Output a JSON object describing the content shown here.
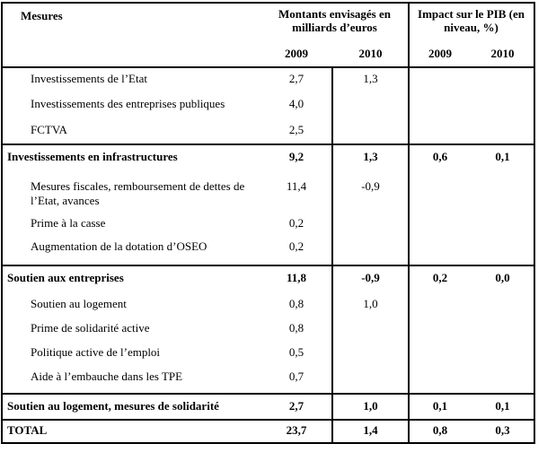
{
  "colors": {
    "border": "#000000",
    "background": "#ffffff",
    "text": "#000000"
  },
  "table": {
    "header": {
      "col_measures": "Mesures",
      "col_amounts": "Montants envisagés en milliards d’euros",
      "col_impact": "Impact sur le PIB (en niveau, %)",
      "year_cols": [
        "2009",
        "2010",
        "2009",
        "2010"
      ]
    },
    "rows": [
      {
        "type": "detail",
        "label": "Investissements de l’Etat",
        "amount_2009": "2,7",
        "amount_2010": "1,3",
        "impact_2009": "",
        "impact_2010": ""
      },
      {
        "type": "detail",
        "label": "Investissements des entreprises publiques",
        "amount_2009": "4,0",
        "amount_2010": "",
        "impact_2009": "",
        "impact_2010": ""
      },
      {
        "type": "detail",
        "label": "FCTVA",
        "amount_2009": "2,5",
        "amount_2010": "",
        "impact_2009": "",
        "impact_2010": ""
      },
      {
        "type": "section",
        "label": "Investissements en infrastructures",
        "amount_2009": "9,2",
        "amount_2010": "1,3",
        "impact_2009": "0,6",
        "impact_2010": "0,1"
      },
      {
        "type": "detail",
        "label": "Mesures fiscales, remboursement de dettes de l’Etat, avances",
        "amount_2009": "11,4",
        "amount_2010": "-0,9",
        "impact_2009": "",
        "impact_2010": ""
      },
      {
        "type": "detail",
        "label": "Prime à la casse",
        "amount_2009": "0,2",
        "amount_2010": "",
        "impact_2009": "",
        "impact_2010": ""
      },
      {
        "type": "detail",
        "label": "Augmentation de la dotation d’OSEO",
        "amount_2009": "0,2",
        "amount_2010": "",
        "impact_2009": "",
        "impact_2010": ""
      },
      {
        "type": "section",
        "label": "Soutien aux entreprises",
        "amount_2009": "11,8",
        "amount_2010": "-0,9",
        "impact_2009": "0,2",
        "impact_2010": "0,0"
      },
      {
        "type": "detail",
        "label": "Soutien au logement",
        "amount_2009": "0,8",
        "amount_2010": "1,0",
        "impact_2009": "",
        "impact_2010": ""
      },
      {
        "type": "detail",
        "label": "Prime de solidarité active",
        "amount_2009": "0,8",
        "amount_2010": "",
        "impact_2009": "",
        "impact_2010": ""
      },
      {
        "type": "detail",
        "label": "Politique active de l’emploi",
        "amount_2009": "0,5",
        "amount_2010": "",
        "impact_2009": "",
        "impact_2010": ""
      },
      {
        "type": "detail",
        "label": "Aide à l’embauche dans les TPE",
        "amount_2009": "0,7",
        "amount_2010": "",
        "impact_2009": "",
        "impact_2010": ""
      },
      {
        "type": "section",
        "label": "Soutien au logement, mesures de solidarité",
        "amount_2009": "2,7",
        "amount_2010": "1,0",
        "impact_2009": "0,1",
        "impact_2010": "0,1"
      },
      {
        "type": "total",
        "label": "TOTAL",
        "amount_2009": "23,7",
        "amount_2010": "1,4",
        "impact_2009": "0,8",
        "impact_2010": "0,3"
      }
    ]
  }
}
